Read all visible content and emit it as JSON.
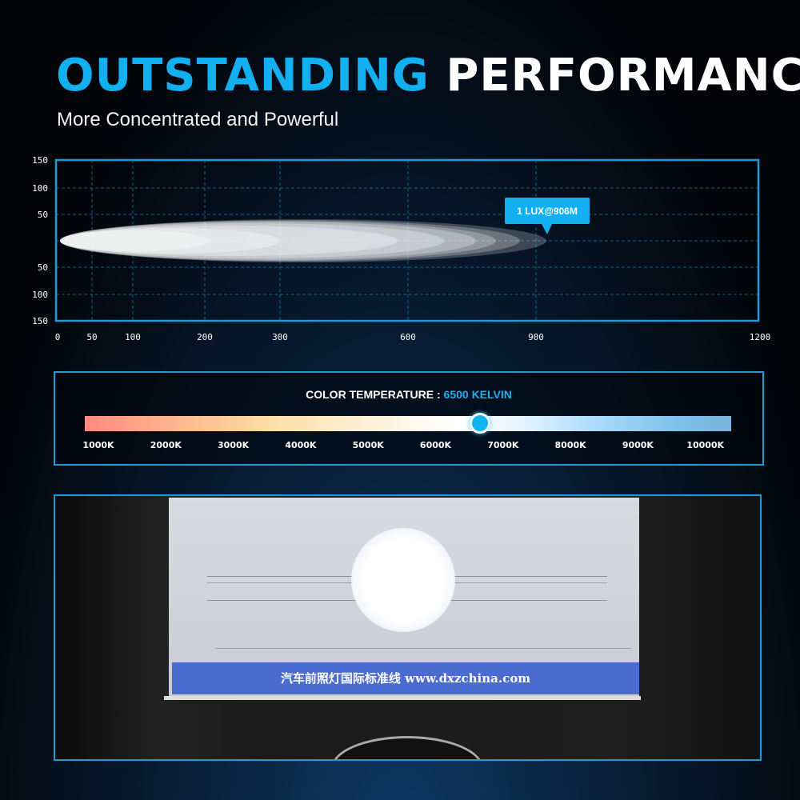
{
  "header": {
    "title_accent": "OUTSTANDING",
    "title_rest": "PERFORMANCE",
    "subtitle": "More Concentrated and Powerful"
  },
  "beam_chart": {
    "x_ticks": [
      "0",
      "50",
      "100",
      "200",
      "300",
      "600",
      "900",
      "1200"
    ],
    "y_ticks": [
      "150",
      "100",
      "50",
      "",
      "50",
      "100",
      "150"
    ],
    "callout": "1 LUX@906M",
    "reach_m": 906,
    "colors": {
      "frame": "#1e9ad8",
      "callout": "#12b0f0"
    }
  },
  "color_temperature": {
    "label": "COLOR TEMPERATURE :",
    "value": "6500 KELVIN",
    "kelvin": 6500,
    "ticks": [
      "1000K",
      "2000K",
      "3000K",
      "4000K",
      "5000K",
      "6000K",
      "7000K",
      "8000K",
      "9000K",
      "10000K"
    ]
  },
  "photo": {
    "banner_text": "汽车前照灯国际标准线 www.dxzchina.com"
  }
}
